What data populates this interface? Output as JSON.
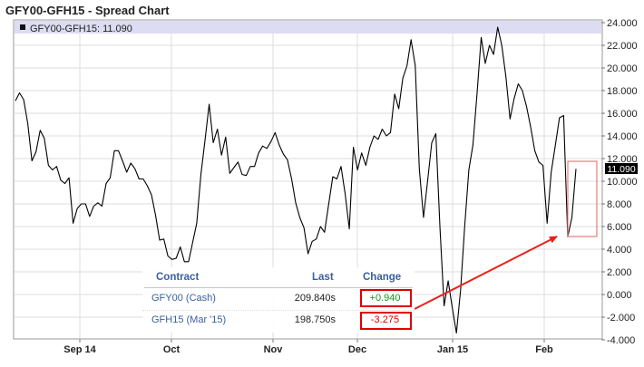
{
  "chart_data": {
    "type": "line",
    "title": "GFY00-GFH15 - Spread Chart",
    "legend_label": "GFY00-GFH15: 11.090",
    "last_value_badge": "11.090",
    "ylim": [
      -4,
      24
    ],
    "yticks": [
      -4,
      -2,
      0,
      2,
      4,
      6,
      8,
      10,
      12,
      14,
      16,
      18,
      20,
      22,
      24
    ],
    "ytick_labels": [
      "-4.000",
      "-2.000",
      "0.000",
      "2.000",
      "4.000",
      "6.000",
      "8.000",
      "10.000",
      "12.000",
      "14.000",
      "16.000",
      "18.000",
      "20.000",
      "22.000",
      "24.000"
    ],
    "xtick_labels": [
      "Sep 14",
      "Oct",
      "Nov",
      "Dec",
      "Jan 15",
      "Feb"
    ],
    "grid": true,
    "series": [
      {
        "values": [
          17.1,
          17.8,
          17.2,
          15.1,
          11.8,
          12.6,
          14.5,
          13.8,
          11.4,
          11.0,
          11.3,
          10.1,
          9.8,
          10.3,
          6.3,
          7.6,
          8.0,
          8.0,
          6.9,
          7.8,
          8.1,
          7.8,
          9.8,
          10.3,
          12.7,
          12.7,
          11.8,
          10.8,
          11.6,
          11.1,
          10.2,
          10.2,
          9.6,
          8.8,
          7.0,
          4.8,
          4.9,
          3.4,
          3.1,
          3.2,
          4.2,
          2.9,
          2.9,
          4.6,
          6.3,
          10.6,
          13.6,
          16.8,
          13.4,
          14.6,
          12.3,
          13.9,
          10.7,
          11.2,
          11.7,
          10.6,
          10.5,
          11.3,
          11.3,
          12.5,
          13.1,
          12.9,
          13.5,
          14.3,
          13.2,
          12.4,
          11.9,
          10.2,
          8.1,
          6.8,
          5.9,
          3.6,
          4.7,
          4.9,
          6.0,
          5.5,
          8.0,
          10.4,
          10.2,
          11.3,
          8.9,
          5.8,
          13.0,
          11.0,
          12.5,
          11.4,
          13.0,
          14.0,
          13.7,
          14.6,
          14.0,
          14.3,
          17.7,
          16.4,
          19.1,
          20.2,
          22.5,
          20.2,
          11.1,
          6.8,
          10.0,
          13.4,
          14.2,
          6.0,
          -1.0,
          1.2,
          -1.2,
          -3.4,
          0.4,
          6.0,
          11.0,
          13.2,
          17.7,
          22.7,
          20.4,
          22.0,
          21.2,
          23.6,
          22.0,
          19.2,
          15.5,
          17.3,
          18.6,
          18.0,
          16.6,
          14.8,
          12.7,
          11.7,
          11.4,
          6.3,
          10.8,
          13.2,
          15.6,
          15.8,
          5.1,
          6.8,
          11.1
        ]
      }
    ]
  },
  "table": {
    "headers": {
      "contract": "Contract",
      "last": "Last",
      "change": "Change"
    },
    "rows": [
      {
        "contract": "GFY00 (Cash)",
        "last": "209.840s",
        "change": "+0.940"
      },
      {
        "contract": "GFH15 (Mar '15)",
        "last": "198.750s",
        "change": "-3.275"
      }
    ]
  },
  "colors": {
    "line": "#000000",
    "grid": "#dcdcdc",
    "legend_band": "#dcdcf2",
    "annotation": "#e8211b",
    "up": "#1a9a1a",
    "down": "#e00000",
    "link": "#3a5f9f"
  }
}
